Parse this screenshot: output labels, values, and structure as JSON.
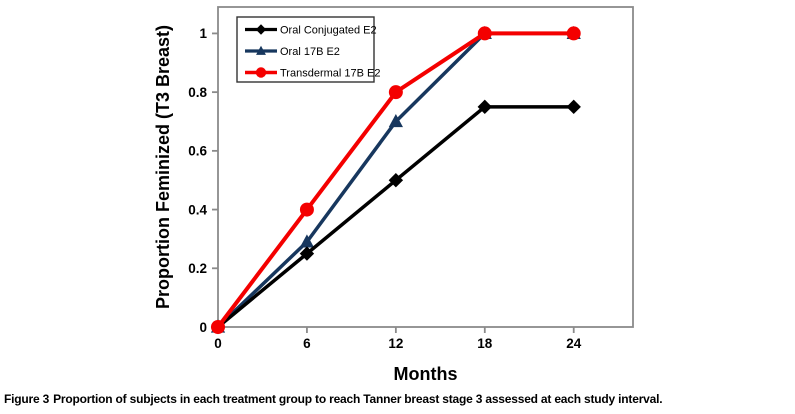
{
  "figure": {
    "caption_label": "Figure 3",
    "caption_text": "Proportion of subjects in each treatment group to reach Tanner breast stage 3 assessed at each study interval."
  },
  "chart_data": {
    "type": "line",
    "title": "",
    "xlabel": "Months",
    "ylabel": "Proportion Feminized (T3 Breast)",
    "x": [
      0,
      6,
      12,
      18,
      24
    ],
    "series": [
      {
        "name": "Oral Conjugated E2",
        "marker": "diamond",
        "color": "#000000",
        "line_width": 3.5,
        "values": [
          0,
          0.25,
          0.5,
          0.75,
          0.75
        ]
      },
      {
        "name": "Oral 17B E2",
        "marker": "triangle",
        "color": "#17375E",
        "line_width": 3.5,
        "values": [
          0,
          0.29,
          0.7,
          1,
          1
        ]
      },
      {
        "name": "Transdermal 17B E2",
        "marker": "circle",
        "color": "#F40000",
        "line_width": 4,
        "values": [
          0,
          0.4,
          0.8,
          1,
          1
        ]
      }
    ],
    "xlim": [
      0,
      28
    ],
    "ylim": [
      0,
      1.09
    ],
    "xticks": [
      "0",
      "6",
      "12",
      "18",
      "24"
    ],
    "yticks": [
      "0",
      "0.2",
      "0.4",
      "0.6",
      "0.8",
      "1"
    ],
    "grid": false,
    "legend_position": "top-left-inside",
    "axis_color": "#8A8A8A",
    "legend_border_color": "#333333",
    "tick_label_color": "#000000",
    "background_color": "#FFFFFF"
  }
}
